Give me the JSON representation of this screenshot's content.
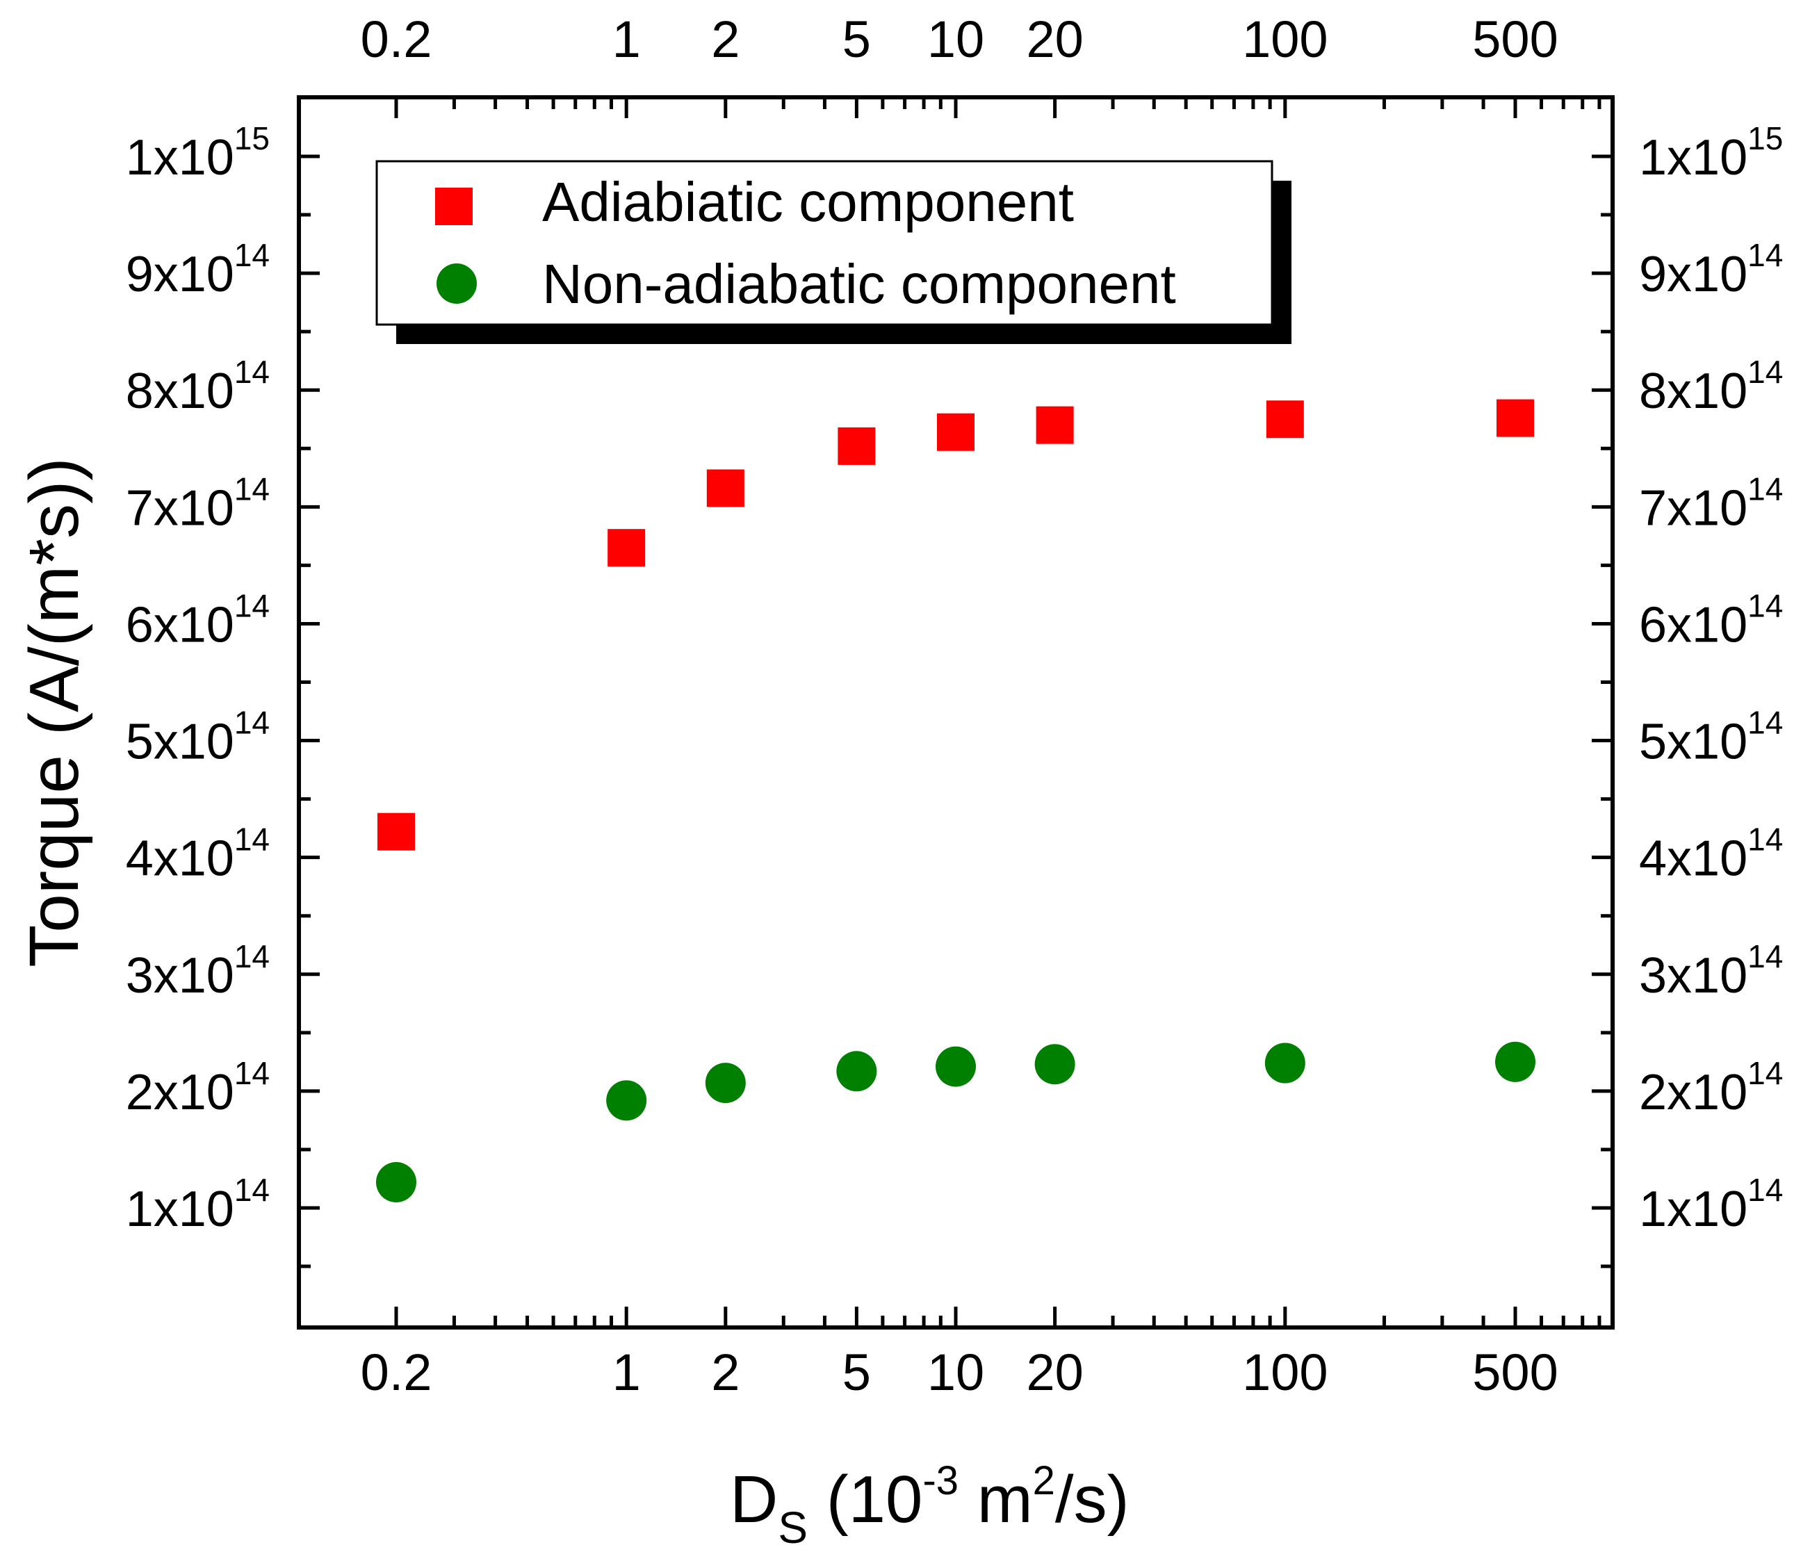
{
  "chart_data": {
    "type": "scatter",
    "x_scale": "log",
    "xlabel": {
      "main": "D",
      "sub": "S",
      "rest1": " (10",
      "exp1": "-3",
      "rest2": " m",
      "exp2": "2",
      "rest3": "/s)"
    },
    "ylabel": "Torque (A/(m*s))",
    "xlim": [
      0.1,
      1000
    ],
    "ylim": [
      0,
      1050000000000000.0
    ],
    "x_ticks": [
      {
        "value": 0.2,
        "label": "0.2"
      },
      {
        "value": 1,
        "label": "1"
      },
      {
        "value": 2,
        "label": "2"
      },
      {
        "value": 5,
        "label": "5"
      },
      {
        "value": 10,
        "label": "10"
      },
      {
        "value": 20,
        "label": "20"
      },
      {
        "value": 100,
        "label": "100"
      },
      {
        "value": 500,
        "label": "500"
      }
    ],
    "y_ticks": [
      {
        "value": 100000000000000.0,
        "mant": "1x10",
        "exp": "14"
      },
      {
        "value": 200000000000000.0,
        "mant": "2x10",
        "exp": "14"
      },
      {
        "value": 300000000000000.0,
        "mant": "3x10",
        "exp": "14"
      },
      {
        "value": 400000000000000.0,
        "mant": "4x10",
        "exp": "14"
      },
      {
        "value": 500000000000000.0,
        "mant": "5x10",
        "exp": "14"
      },
      {
        "value": 600000000000000.0,
        "mant": "6x10",
        "exp": "14"
      },
      {
        "value": 700000000000000.0,
        "mant": "7x10",
        "exp": "14"
      },
      {
        "value": 800000000000000.0,
        "mant": "8x10",
        "exp": "14"
      },
      {
        "value": 900000000000000.0,
        "mant": "9x10",
        "exp": "14"
      },
      {
        "value": 1000000000000000.0,
        "mant": "1x10",
        "exp": "15"
      }
    ],
    "series": [
      {
        "name": "Adiabiatic component",
        "marker": "square",
        "color": "#ff0000",
        "x": [
          0.2,
          1,
          2,
          5,
          10,
          20,
          100,
          500
        ],
        "y": [
          422000000000000.0,
          665000000000000.0,
          716000000000000.0,
          752000000000000.0,
          764000000000000.0,
          770000000000000.0,
          775000000000000.0,
          776000000000000.0
        ]
      },
      {
        "name": "Non-adiabatic component",
        "marker": "circle",
        "color": "#008000",
        "x": [
          0.2,
          1,
          2,
          5,
          10,
          20,
          100,
          500
        ],
        "y": [
          122000000000000.0,
          192000000000000.0,
          207000000000000.0,
          217000000000000.0,
          221000000000000.0,
          223000000000000.0,
          224000000000000.0,
          225000000000000.0
        ]
      }
    ],
    "legend": {
      "position": "top-left"
    },
    "mirror_axes": true
  }
}
